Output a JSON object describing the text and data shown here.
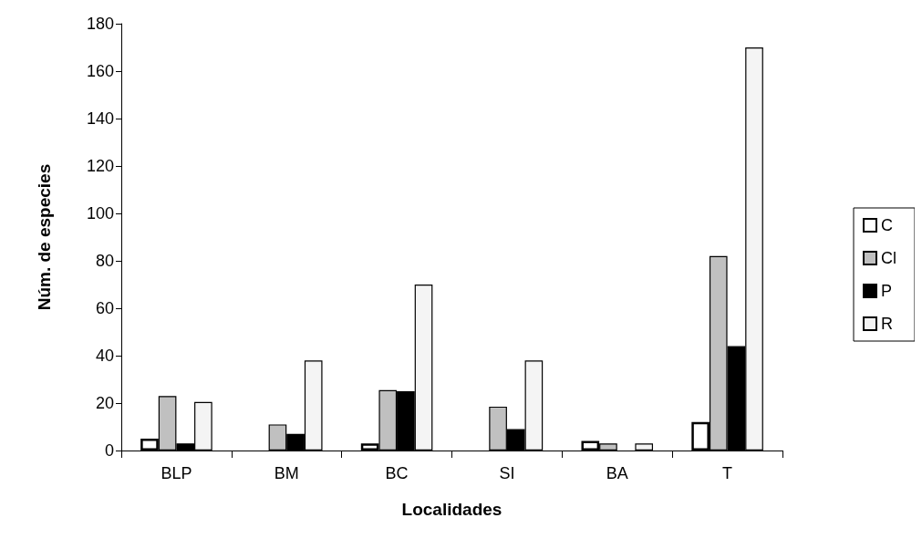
{
  "chart_data": {
    "type": "bar",
    "xlabel": "Localidades",
    "ylabel": "Núm. de especies",
    "categories": [
      "BLP",
      "BM",
      "BC",
      "SI",
      "BA",
      "T"
    ],
    "series": [
      {
        "name": "C",
        "color": "#ffffff",
        "values": [
          5,
          null,
          3,
          null,
          4,
          12
        ]
      },
      {
        "name": "Cl",
        "color": "#c0c0c0",
        "values": [
          23,
          11,
          25.5,
          18.5,
          3,
          82
        ]
      },
      {
        "name": "P",
        "color": "#000000",
        "values": [
          3,
          7,
          25,
          9,
          null,
          44
        ]
      },
      {
        "name": "R",
        "color": "#f4f4f4",
        "values": [
          20.5,
          38,
          70,
          38,
          3,
          170
        ]
      }
    ],
    "ylim": [
      0,
      180
    ],
    "yticks": [
      0,
      20,
      40,
      60,
      80,
      100,
      120,
      140,
      160,
      180
    ],
    "grid": false,
    "legend": "right"
  }
}
